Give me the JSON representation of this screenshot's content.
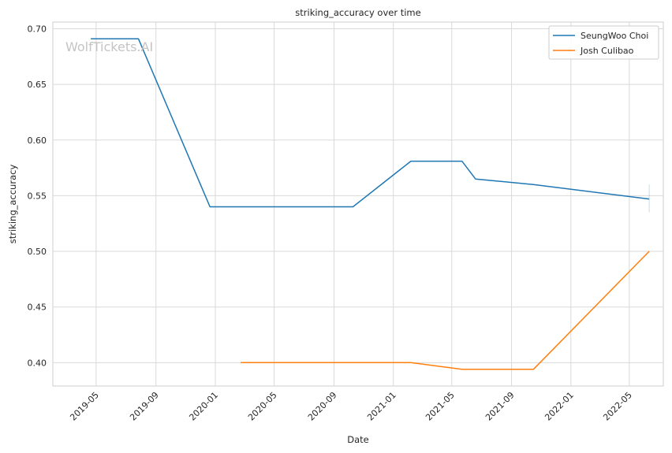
{
  "chart_data": {
    "type": "line",
    "title": "striking_accuracy over time",
    "xlabel": "Date",
    "ylabel": "striking_accuracy",
    "watermark": "WolfTickets.AI",
    "x_ticks": [
      "2019-05",
      "2019-09",
      "2020-01",
      "2020-05",
      "2020-09",
      "2021-01",
      "2021-05",
      "2021-09",
      "2022-01",
      "2022-05"
    ],
    "y_ticks": [
      "0.40",
      "0.45",
      "0.50",
      "0.55",
      "0.60",
      "0.65",
      "0.70"
    ],
    "xlim": [
      "2019-02-01",
      "2022-07-10"
    ],
    "ylim": [
      0.379,
      0.706
    ],
    "grid": true,
    "legend_position": "top-right",
    "series": [
      {
        "name": "SeungWoo Choi",
        "color": "#1f77b4",
        "points": [
          [
            "2019-04-20",
            0.691
          ],
          [
            "2019-07-27",
            0.691
          ],
          [
            "2019-12-21",
            0.54
          ],
          [
            "2020-10-10",
            0.54
          ],
          [
            "2021-02-06",
            0.581
          ],
          [
            "2021-05-22",
            0.581
          ],
          [
            "2021-06-19",
            0.565
          ],
          [
            "2021-10-16",
            0.56
          ],
          [
            "2022-06-11",
            0.547
          ]
        ],
        "error_bar": {
          "x": "2022-06-11",
          "low": 0.535,
          "high": 0.56
        }
      },
      {
        "name": "Josh Culibao",
        "color": "#ff7f0e",
        "points": [
          [
            "2020-02-22",
            0.4
          ],
          [
            "2021-02-06",
            0.4
          ],
          [
            "2021-05-22",
            0.394
          ],
          [
            "2021-10-16",
            0.394
          ],
          [
            "2022-06-11",
            0.5
          ]
        ]
      }
    ]
  }
}
